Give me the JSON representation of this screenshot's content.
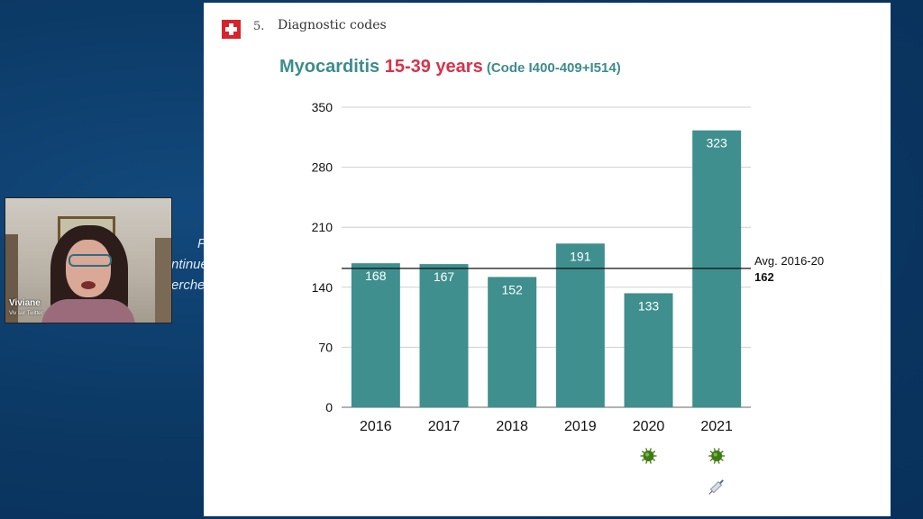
{
  "background_text": [
    "P",
    "ntinue",
    "erche"
  ],
  "webcam": {
    "name": "Viviane",
    "subtitle": "Viv sur Twitter"
  },
  "slide": {
    "section_number": "5.",
    "section_title": "Diagnostic codes",
    "title_part1": "Myocarditis ",
    "title_part2": "15-39 years",
    "title_part3": " (Code I400-409+I514)",
    "colors": {
      "bar": "#3f8f8f",
      "title_teal": "#3d8c8c",
      "title_red": "#d6334a",
      "flag_red": "#d8232a"
    },
    "icons": [
      "swiss-flag-icon",
      "virus-icon",
      "syringe-icon"
    ]
  },
  "chart_data": {
    "type": "bar",
    "categories": [
      "2016",
      "2017",
      "2018",
      "2019",
      "2020",
      "2021"
    ],
    "values": [
      168,
      167,
      152,
      191,
      133,
      323
    ],
    "yticks": [
      0,
      70,
      140,
      210,
      280,
      350
    ],
    "ylim": [
      0,
      350
    ],
    "grid": true,
    "reference_line": {
      "label": "Avg. 2016-20",
      "value": 162
    },
    "markers": [
      {
        "category": "2020",
        "icons": [
          "virus-icon"
        ]
      },
      {
        "category": "2021",
        "icons": [
          "virus-icon",
          "syringe-icon"
        ]
      }
    ]
  }
}
